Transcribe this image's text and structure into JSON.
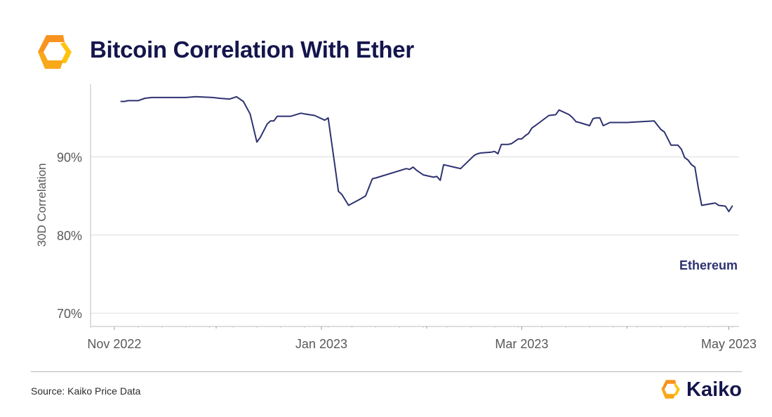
{
  "header": {
    "title": "Bitcoin Correlation With Ether"
  },
  "footer": {
    "source": "Source: Kaiko Price Data",
    "brand": "Kaiko"
  },
  "colors": {
    "title": "#15154d",
    "line": "#2e3270",
    "logo_orange": "#f7931e",
    "logo_yellow": "#ffc20e",
    "grid": "#dcdcdc",
    "axis_text": "#595959"
  },
  "icons": {
    "header_logo": "kaiko-logo-icon",
    "footer_logo": "kaiko-logo-icon"
  },
  "chart_data": {
    "type": "line",
    "title": "Bitcoin Correlation With Ether",
    "xlabel": "",
    "ylabel": "30D Correlation",
    "x_ticks": [
      "Nov 2022",
      "Jan 2023",
      "Mar 2023",
      "May 2023"
    ],
    "y_ticks": [
      "70%",
      "80%",
      "90%"
    ],
    "ylim": [
      68.3,
      99.3
    ],
    "xlim": [
      "2022-10-25",
      "2023-05-04"
    ],
    "grid": "horizontal",
    "legend": "none",
    "series": [
      {
        "name": "Ethereum",
        "x": [
          "2022-11-03",
          "2022-11-04",
          "2022-11-05",
          "2022-11-06",
          "2022-11-08",
          "2022-11-10",
          "2022-11-12",
          "2022-11-15",
          "2022-11-18",
          "2022-11-20",
          "2022-11-22",
          "2022-11-25",
          "2022-11-30",
          "2022-12-02",
          "2022-12-05",
          "2022-12-07",
          "2022-12-09",
          "2022-12-11",
          "2022-12-13",
          "2022-12-14",
          "2022-12-16",
          "2022-12-17",
          "2022-12-18",
          "2022-12-19",
          "2022-12-20",
          "2022-12-23",
          "2022-12-26",
          "2022-12-27",
          "2022-12-30",
          "2023-01-02",
          "2023-01-03",
          "2023-01-05",
          "2023-01-06",
          "2023-01-07",
          "2023-01-09",
          "2023-01-12",
          "2023-01-14",
          "2023-01-16",
          "2023-01-17",
          "2023-01-26",
          "2023-01-27",
          "2023-01-28",
          "2023-01-29",
          "2023-01-31",
          "2023-02-03",
          "2023-02-04",
          "2023-02-05",
          "2023-02-06",
          "2023-02-09",
          "2023-02-10",
          "2023-02-11",
          "2023-02-15",
          "2023-02-16",
          "2023-02-17",
          "2023-02-20",
          "2023-02-21",
          "2023-02-22",
          "2023-02-23",
          "2023-02-25",
          "2023-02-26",
          "2023-02-28",
          "2023-03-01",
          "2023-03-02",
          "2023-03-03",
          "2023-03-04",
          "2023-03-05",
          "2023-03-09",
          "2023-03-11",
          "2023-03-12",
          "2023-03-15",
          "2023-03-16",
          "2023-03-17",
          "2023-03-18",
          "2023-03-21",
          "2023-03-22",
          "2023-03-23",
          "2023-03-24",
          "2023-03-25",
          "2023-03-27",
          "2023-04-01",
          "2023-04-09",
          "2023-04-11",
          "2023-04-12",
          "2023-04-14",
          "2023-04-16",
          "2023-04-17",
          "2023-04-18",
          "2023-04-19",
          "2023-04-20",
          "2023-04-21",
          "2023-04-22",
          "2023-04-23",
          "2023-04-27",
          "2023-04-28",
          "2023-04-30",
          "2023-05-01",
          "2023-05-02"
        ],
        "y": [
          97.1,
          97.1,
          97.2,
          97.2,
          97.2,
          97.5,
          97.6,
          97.6,
          97.6,
          97.6,
          97.6,
          97.7,
          97.6,
          97.5,
          97.4,
          97.7,
          97.1,
          95.5,
          91.9,
          92.5,
          94.2,
          94.6,
          94.6,
          95.2,
          95.2,
          95.2,
          95.6,
          95.5,
          95.3,
          94.7,
          95.0,
          88.8,
          85.6,
          85.2,
          83.8,
          84.5,
          85.0,
          87.2,
          87.3,
          88.5,
          88.4,
          88.7,
          88.3,
          87.7,
          87.4,
          87.5,
          87.0,
          89.0,
          88.7,
          88.6,
          88.5,
          90.2,
          90.4,
          90.5,
          90.6,
          90.7,
          90.4,
          91.6,
          91.6,
          91.7,
          92.3,
          92.3,
          92.7,
          93.0,
          93.7,
          94.0,
          95.3,
          95.4,
          96.0,
          95.4,
          95.0,
          94.5,
          94.4,
          94.0,
          94.9,
          95.0,
          95.0,
          94.0,
          94.4,
          94.4,
          94.6,
          93.5,
          93.2,
          91.5,
          91.5,
          91.0,
          89.9,
          89.6,
          89.0,
          88.7,
          86.1,
          83.8,
          84.1,
          83.8,
          83.7,
          83.0,
          83.7
        ]
      }
    ],
    "annotations": [
      "Ethereum"
    ]
  }
}
